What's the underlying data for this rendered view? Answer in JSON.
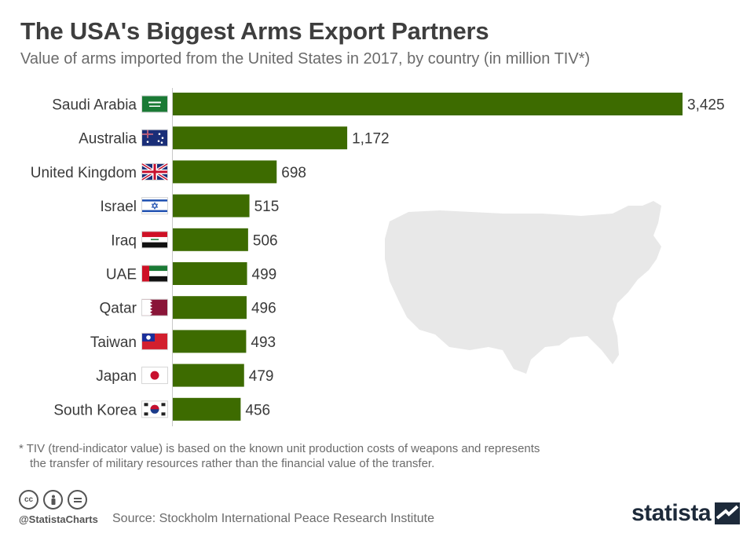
{
  "title": "The USA's Biggest Arms Export Partners",
  "subtitle": "Value of arms imported from the United States in 2017, by country (in million TIV*)",
  "note_line1": "* TIV (trend-indicator value) is based on the known unit production costs of weapons and represents",
  "note_line2": "the transfer of military resources rather than the financial value of the transfer.",
  "handle": "@StatistaCharts",
  "source": "Source: Stockholm International Peace Research Institute",
  "logo": "statista",
  "colors": {
    "bar": "#3d6b00",
    "map": "#e8e8e8",
    "axis": "#c8c8c8"
  },
  "chart_data": {
    "type": "bar",
    "orientation": "horizontal",
    "categories": [
      "Saudi Arabia",
      "Australia",
      "United Kingdom",
      "Israel",
      "Iraq",
      "UAE",
      "Qatar",
      "Taiwan",
      "Japan",
      "South Korea"
    ],
    "values": [
      3425,
      1172,
      698,
      515,
      506,
      499,
      496,
      493,
      479,
      456
    ],
    "value_labels": [
      "3,425",
      "1,172",
      "698",
      "515",
      "506",
      "499",
      "496",
      "493",
      "479",
      "456"
    ],
    "flag_icons": [
      "flag-saudi-arabia-icon",
      "flag-australia-icon",
      "flag-united-kingdom-icon",
      "flag-israel-icon",
      "flag-iraq-icon",
      "flag-uae-icon",
      "flag-qatar-icon",
      "flag-taiwan-icon",
      "flag-japan-icon",
      "flag-south-korea-icon"
    ],
    "xlim": [
      0,
      3425
    ],
    "grid": false
  }
}
